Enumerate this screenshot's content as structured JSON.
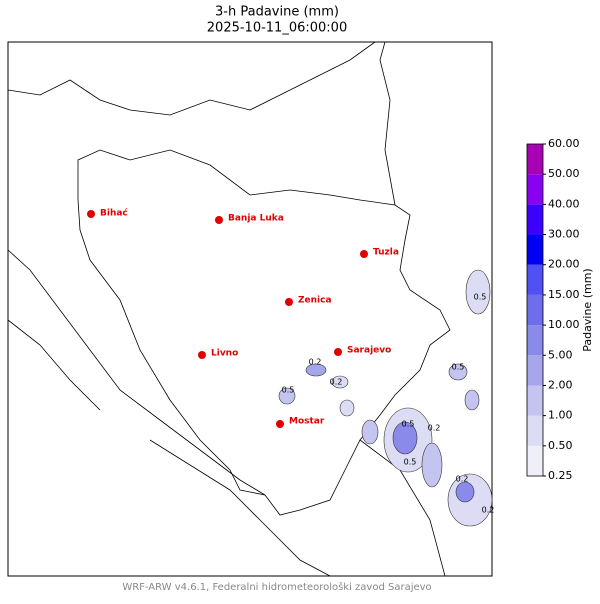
{
  "header": {
    "title": "3-h Padavine (mm)",
    "subtitle": "2025-10-11_06:00:00"
  },
  "cities": [
    "Bihać",
    "Banja Luka",
    "Tuzla",
    "Zenica",
    "Livno",
    "Sarajevo",
    "Mostar"
  ],
  "colorbar": {
    "label": "Padavine (mm)",
    "ticks": [
      "0.25",
      "0.50",
      "1.00",
      "2.00",
      "5.00",
      "10.00",
      "15.00",
      "20.00",
      "30.00",
      "40.00",
      "50.00",
      "60.00"
    ],
    "colors": [
      "#efeffb",
      "#dcdcf5",
      "#c4c4f0",
      "#a6a6ec",
      "#8a8aeb",
      "#6e6eed",
      "#5050f3",
      "#0000f5",
      "#3c00ff",
      "#8a00f0",
      "#a800b4"
    ]
  },
  "contour_labels": [
    "0.5",
    "0.2",
    "0.5",
    "0.2",
    "0.5",
    "0.5",
    "0.2",
    "0.2",
    "0.5",
    "0.2"
  ],
  "footer": "WRF-ARW v4.6.1, Federalni hidrometeorološki zavod Sarajevo"
}
